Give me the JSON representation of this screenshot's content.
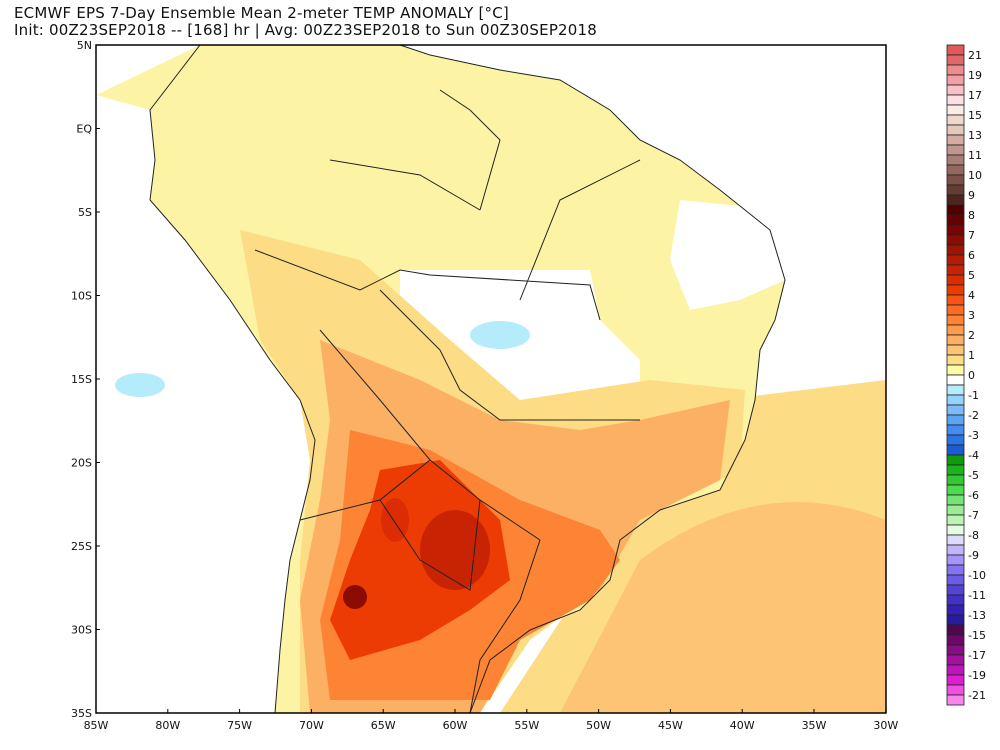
{
  "title": "ECMWF EPS 7-Day Ensemble Mean 2-meter TEMP ANOMALY [°C]",
  "subtitle": "Init: 00Z23SEP2018 -- [168] hr | Avg: 00Z23SEP2018 to Sun 00Z30SEP2018",
  "map": {
    "lon_range": [
      -85,
      -30
    ],
    "lat_range": [
      -35,
      5
    ],
    "lat_labels": [
      "5N",
      "EQ",
      "5S",
      "10S",
      "15S",
      "20S",
      "25S",
      "30S",
      "35S"
    ],
    "lon_labels": [
      "85W",
      "80W",
      "75W",
      "70W",
      "65W",
      "60W",
      "55W",
      "50W",
      "45W",
      "40W",
      "35W",
      "30W"
    ],
    "colors": {
      "land_yellow": "#fcf4a4",
      "light_orange": "#fcdc84",
      "orange": "#fcb064",
      "dark_orange": "#fc8434",
      "red": "#ec3c04",
      "dark_red": "#b41c04",
      "cool": "#b4ecfc"
    }
  },
  "colorbar": {
    "labels": [
      "21",
      "19",
      "17",
      "15",
      "13",
      "11",
      "10",
      "9",
      "8",
      "7",
      "6",
      "5",
      "4",
      "3",
      "2",
      "1",
      "0",
      "-1",
      "-2",
      "-3",
      "-4",
      "-5",
      "-6",
      "-7",
      "-8",
      "-9",
      "-10",
      "-11",
      "-13",
      "-15",
      "-17",
      "-19",
      "-21"
    ],
    "colors": [
      "#e05a5a",
      "#e06868",
      "#ec8c8c",
      "#f2a0a8",
      "#f8c0c8",
      "#fbe0e4",
      "#faeee4",
      "#eed8cc",
      "#e4c8bc",
      "#d4aca4",
      "#c0968e",
      "#a87e76",
      "#94685e",
      "#7c5248",
      "#643c34",
      "#4c2420",
      "#500000",
      "#640000",
      "#780404",
      "#8c0c04",
      "#a01404",
      "#b41c04",
      "#c82404",
      "#dc2c04",
      "#ec3c04",
      "#f85414",
      "#fc6c24",
      "#fc8434",
      "#fc9c4c",
      "#fcb064",
      "#fcc474",
      "#fcdc84",
      "#fcfca4",
      "#ffffff",
      "#b4ecfc",
      "#94d4fc",
      "#7cbcfc",
      "#5ca4f4",
      "#448cf4",
      "#2c74e4",
      "#1c5cd4",
      "#0c9c0c",
      "#1cb41c",
      "#34c834",
      "#4cdc4c",
      "#74e474",
      "#9cec94",
      "#bcf4b4",
      "#e4fce4",
      "#dcdcfc",
      "#c4b4fc",
      "#a494fc",
      "#8474f4",
      "#6c5ce4",
      "#5444d4",
      "#4430c4",
      "#3420b4",
      "#281c9c",
      "#50084c",
      "#6c0868",
      "#880c84",
      "#a410a0",
      "#c014bc",
      "#e01cd4",
      "#f050e0",
      "#f884ec"
    ]
  }
}
